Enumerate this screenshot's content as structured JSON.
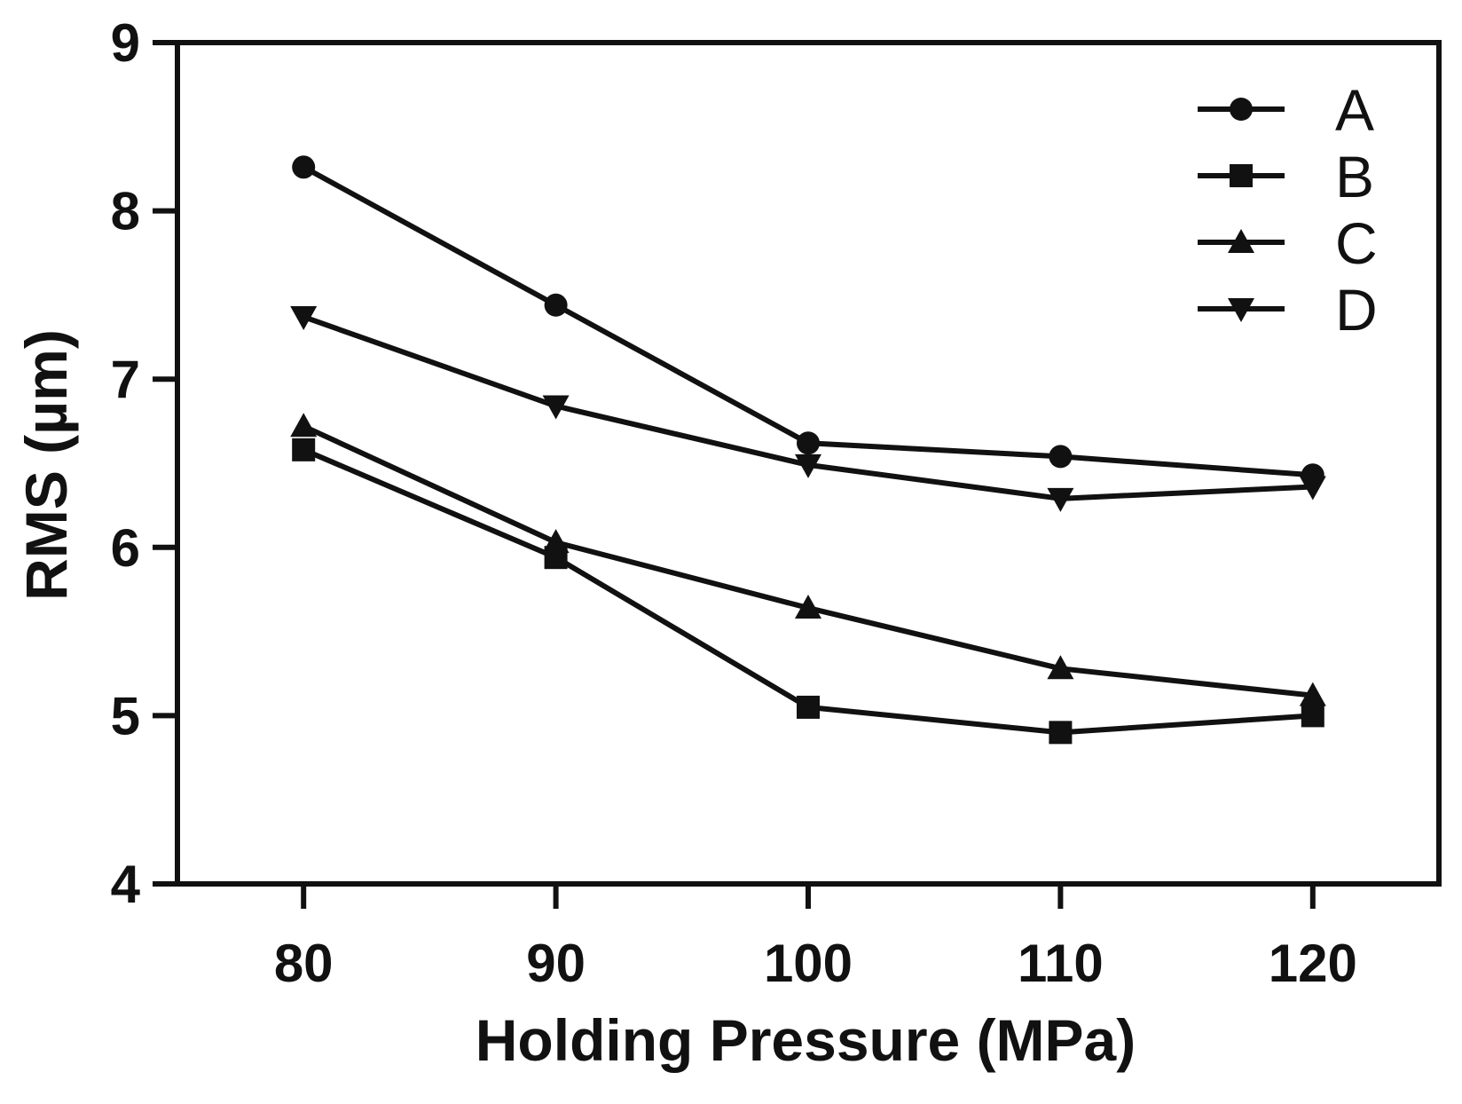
{
  "chart_data": {
    "type": "line",
    "title": "",
    "xlabel": "Holding Pressure (MPa)",
    "ylabel": "RMS (µm)",
    "x": [
      80,
      90,
      100,
      110,
      120
    ],
    "xlim": [
      75,
      125
    ],
    "ylim": [
      4,
      9
    ],
    "x_ticks": [
      "80",
      "90",
      "100",
      "110",
      "120"
    ],
    "y_ticks": [
      "4",
      "5",
      "6",
      "7",
      "8",
      "9"
    ],
    "grid": false,
    "legend_position": "top-right",
    "series": [
      {
        "name": "A",
        "marker": "circle",
        "values": [
          8.26,
          7.44,
          6.62,
          6.54,
          6.43
        ]
      },
      {
        "name": "B",
        "marker": "square",
        "values": [
          6.58,
          5.94,
          5.05,
          4.9,
          5.0
        ]
      },
      {
        "name": "C",
        "marker": "triangle-up",
        "values": [
          6.72,
          6.03,
          5.64,
          5.28,
          5.12
        ]
      },
      {
        "name": "D",
        "marker": "triangle-down",
        "values": [
          7.37,
          6.84,
          6.49,
          6.29,
          6.36
        ]
      }
    ],
    "colors": {
      "line": "#111111",
      "background": "#ffffff"
    }
  }
}
